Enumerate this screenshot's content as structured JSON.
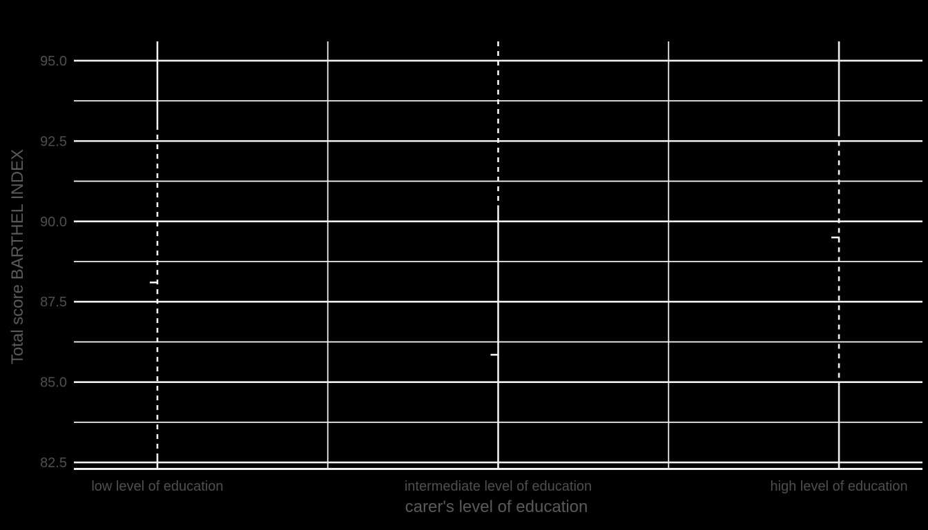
{
  "figure": {
    "background": "#000000"
  },
  "chart_data": {
    "type": "boxplot",
    "title": "",
    "xlabel": "carer's level of education",
    "ylabel": "Total score BARTHEL INDEX",
    "categories": [
      "low level of education",
      "intermediate level of education",
      "high level of education"
    ],
    "y_ticks": [
      {
        "value": 82.5,
        "label": "82.5"
      },
      {
        "value": 85.0,
        "label": "85.0"
      },
      {
        "value": 87.5,
        "label": "87.5"
      },
      {
        "value": 90.0,
        "label": "90.0"
      },
      {
        "value": 92.5,
        "label": "92.5"
      },
      {
        "value": 95.0,
        "label": "95.0"
      }
    ],
    "y_minor_gridlines": [
      83.75,
      86.25,
      88.75,
      91.25,
      93.75
    ],
    "ylim": [
      82.33,
      95.6
    ],
    "grid": true,
    "legend": false,
    "series": [
      {
        "category": "low level of education",
        "whisker_high": 93.0,
        "whisker_low": 82.75,
        "cap": 88.1
      },
      {
        "category": "intermediate level of education",
        "whisker_high": 95.6,
        "whisker_low": 90.5,
        "cap": 85.85
      },
      {
        "category": "high level of education",
        "whisker_high": 92.8,
        "whisker_low": 84.9,
        "cap": 89.5
      }
    ],
    "style": {
      "background": "#000000",
      "grid_color": "#f0f0f0",
      "whisker_color": "#f5f5f5",
      "axis_line_color": "#f0f0f0",
      "tick_label_color": "#4f4f4f",
      "title_color": "#5a5a5a"
    }
  }
}
